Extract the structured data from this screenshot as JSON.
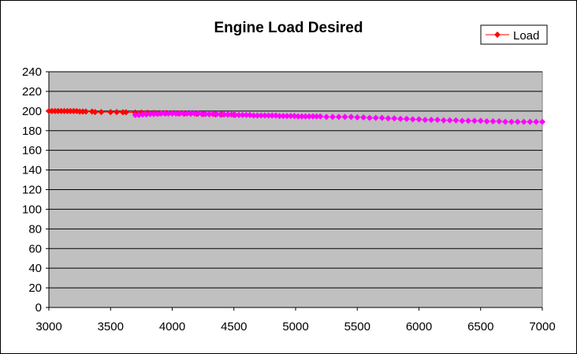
{
  "chart_data": {
    "type": "line",
    "title": "Engine Load Desired",
    "xlabel": "",
    "ylabel": "",
    "xlim": [
      3000,
      7000
    ],
    "ylim": [
      0,
      240
    ],
    "x_ticks": [
      "3000",
      "3500",
      "4000",
      "4500",
      "5000",
      "5500",
      "6000",
      "6500",
      "7000"
    ],
    "y_ticks": [
      "0",
      "20",
      "40",
      "60",
      "80",
      "100",
      "120",
      "140",
      "160",
      "180",
      "200",
      "220",
      "240"
    ],
    "grid": "horizontal",
    "legend_position": "top-right",
    "plot_background": "#c0c0c0",
    "series": [
      {
        "name": "Load",
        "color": "#ff0000",
        "marker": "diamond",
        "line": true,
        "points": [
          [
            3000,
            200
          ],
          [
            3025,
            200
          ],
          [
            3050,
            200
          ],
          [
            3075,
            200
          ],
          [
            3100,
            200
          ],
          [
            3125,
            200
          ],
          [
            3150,
            200
          ],
          [
            3175,
            200
          ],
          [
            3200,
            200
          ],
          [
            3225,
            200
          ],
          [
            3250,
            199.5
          ],
          [
            3275,
            199.5
          ],
          [
            3300,
            199.5
          ],
          [
            3350,
            199.5
          ],
          [
            3375,
            199
          ],
          [
            3425,
            199
          ],
          [
            3500,
            199
          ],
          [
            3550,
            199
          ],
          [
            3600,
            198.8
          ],
          [
            3625,
            198.8
          ],
          [
            3700,
            198.5
          ],
          [
            3750,
            198.5
          ],
          [
            3800,
            198.3
          ],
          [
            3850,
            198.2
          ],
          [
            3900,
            198
          ],
          [
            3950,
            198
          ],
          [
            4000,
            197.8
          ],
          [
            4050,
            197.7
          ],
          [
            4100,
            197.5
          ],
          [
            4150,
            197.3
          ],
          [
            4200,
            197.2
          ],
          [
            4250,
            197
          ],
          [
            4300,
            196.8
          ],
          [
            4350,
            196.7
          ],
          [
            4400,
            196.5
          ],
          [
            4450,
            196.4
          ],
          [
            4500,
            196.2
          ]
        ]
      },
      {
        "name": "",
        "color": "#ff00ff",
        "marker": "diamond",
        "line": false,
        "points": [
          [
            3700,
            196
          ],
          [
            3730,
            196
          ],
          [
            3760,
            196.5
          ],
          [
            3790,
            196.5
          ],
          [
            3820,
            197
          ],
          [
            3850,
            197
          ],
          [
            3880,
            197
          ],
          [
            3910,
            197.5
          ],
          [
            3940,
            197.5
          ],
          [
            3970,
            197.5
          ],
          [
            4000,
            197.5
          ],
          [
            4030,
            197.5
          ],
          [
            4060,
            197.5
          ],
          [
            4090,
            197.5
          ],
          [
            4120,
            197.5
          ],
          [
            4150,
            197.5
          ],
          [
            4180,
            197.5
          ],
          [
            4210,
            197.5
          ],
          [
            4240,
            197
          ],
          [
            4270,
            197
          ],
          [
            4300,
            197
          ],
          [
            4330,
            197
          ],
          [
            4360,
            197
          ],
          [
            4390,
            196.5
          ],
          [
            4420,
            196.5
          ],
          [
            4450,
            196.5
          ],
          [
            4480,
            196.5
          ],
          [
            4510,
            196
          ],
          [
            4540,
            196
          ],
          [
            4570,
            196
          ],
          [
            4600,
            196
          ],
          [
            4630,
            196
          ],
          [
            4660,
            195.5
          ],
          [
            4690,
            195.5
          ],
          [
            4720,
            195.5
          ],
          [
            4750,
            195.5
          ],
          [
            4780,
            195.5
          ],
          [
            4810,
            195.5
          ],
          [
            4840,
            195.5
          ],
          [
            4870,
            195
          ],
          [
            4900,
            195
          ],
          [
            4930,
            195
          ],
          [
            4960,
            195
          ],
          [
            4990,
            195
          ],
          [
            5020,
            194.5
          ],
          [
            5050,
            194.5
          ],
          [
            5080,
            194.5
          ],
          [
            5110,
            194.5
          ],
          [
            5140,
            194.5
          ],
          [
            5170,
            194.5
          ],
          [
            5200,
            194.5
          ],
          [
            5250,
            194
          ],
          [
            5300,
            194
          ],
          [
            5350,
            194
          ],
          [
            5400,
            194
          ],
          [
            5450,
            194
          ],
          [
            5500,
            193.5
          ],
          [
            5550,
            193.5
          ],
          [
            5600,
            193
          ],
          [
            5650,
            193
          ],
          [
            5700,
            193
          ],
          [
            5750,
            192.5
          ],
          [
            5800,
            192.5
          ],
          [
            5850,
            192
          ],
          [
            5900,
            192
          ],
          [
            5950,
            191.5
          ],
          [
            6000,
            191.5
          ],
          [
            6050,
            191
          ],
          [
            6100,
            191
          ],
          [
            6150,
            191
          ],
          [
            6200,
            190.5
          ],
          [
            6250,
            190.5
          ],
          [
            6300,
            190.5
          ],
          [
            6350,
            190
          ],
          [
            6400,
            190
          ],
          [
            6450,
            190
          ],
          [
            6500,
            190
          ],
          [
            6550,
            189.5
          ],
          [
            6600,
            189.5
          ],
          [
            6650,
            189.5
          ],
          [
            6700,
            189
          ],
          [
            6750,
            189
          ],
          [
            6800,
            189
          ],
          [
            6850,
            189
          ],
          [
            6900,
            189
          ],
          [
            6950,
            189
          ],
          [
            7000,
            189
          ]
        ]
      }
    ]
  }
}
